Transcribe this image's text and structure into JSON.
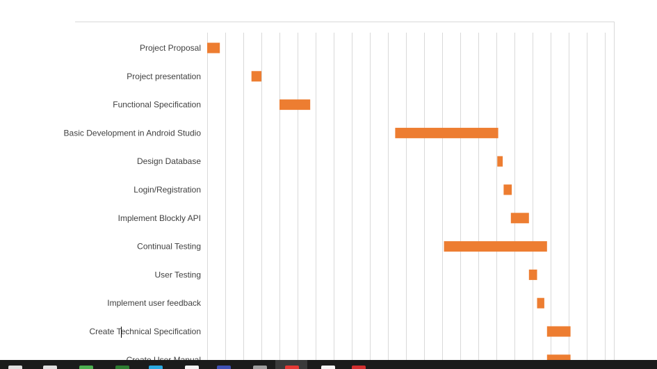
{
  "chart_data": {
    "type": "gantt",
    "title": "",
    "xlabel": "",
    "ylabel": "",
    "x_range": [
      0,
      22
    ],
    "grid": true,
    "bar_color": "#ED7D31",
    "tasks": [
      {
        "label": "Project Proposal",
        "start": 0.0,
        "duration": 0.7
      },
      {
        "label": "Project presentation",
        "start": 2.45,
        "duration": 0.55
      },
      {
        "label": "Functional Specification",
        "start": 4.0,
        "duration": 1.7
      },
      {
        "label": "Basic Development in Android Studio",
        "start": 10.4,
        "duration": 5.7
      },
      {
        "label": "Design Database",
        "start": 16.05,
        "duration": 0.3
      },
      {
        "label": "Login/Registration",
        "start": 16.4,
        "duration": 0.45
      },
      {
        "label": "Implement Blockly API",
        "start": 16.8,
        "duration": 1.0
      },
      {
        "label": "Continual Testing",
        "start": 13.1,
        "duration": 5.7
      },
      {
        "label": "User Testing",
        "start": 17.8,
        "duration": 0.45
      },
      {
        "label": "Implement user feedback",
        "start": 18.25,
        "duration": 0.4
      },
      {
        "label": "Create Technical Specification",
        "start": 18.8,
        "duration": 1.3
      },
      {
        "label": "Create User Manual",
        "start": 18.8,
        "duration": 1.3
      }
    ]
  },
  "taskbar": {
    "icons": [
      {
        "name": "search-icon",
        "color": "#e0e0e0"
      },
      {
        "name": "task-view-icon",
        "color": "#e0e0e0"
      },
      {
        "name": "app-green-icon",
        "color": "#4caf50"
      },
      {
        "name": "app-green-dark-icon",
        "color": "#2e7d32"
      },
      {
        "name": "edge-icon",
        "color": "#29a8e0"
      },
      {
        "name": "file-explorer-icon",
        "color": "#f5f5f5"
      },
      {
        "name": "app-blue-icon",
        "color": "#3f51b5"
      },
      {
        "name": "app-gray-icon",
        "color": "#9e9e9e"
      },
      {
        "name": "chrome-icon",
        "color": "#e53935"
      },
      {
        "name": "app-white-icon",
        "color": "#f5f5f5"
      },
      {
        "name": "app-red-icon",
        "color": "#d32f2f"
      }
    ]
  }
}
